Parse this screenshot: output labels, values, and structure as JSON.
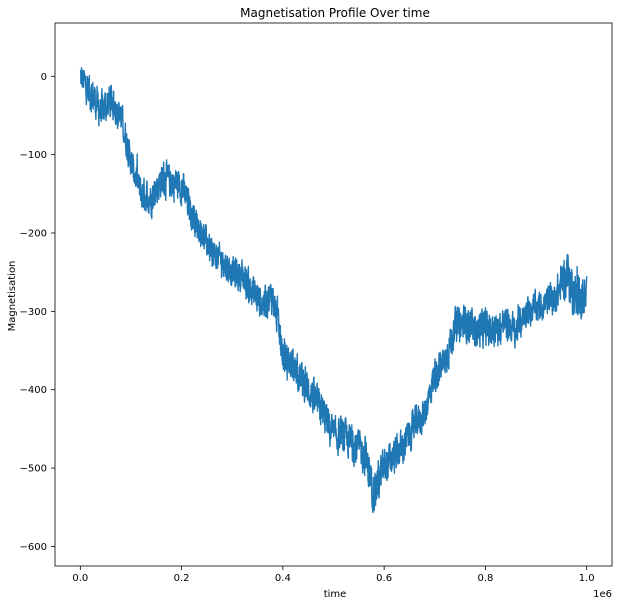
{
  "chart_data": {
    "type": "line",
    "title": "Magnetisation Profile Over time",
    "xlabel": "time",
    "ylabel": "Magnetisation",
    "x_offset_label": "1e6",
    "x_multiplier": 1000000,
    "xlim": [
      -0.05,
      1.05
    ],
    "ylim": [
      -625,
      68
    ],
    "x_ticks": [
      0.0,
      0.2,
      0.4,
      0.6,
      0.8,
      1.0
    ],
    "x_tick_labels": [
      "0.0",
      "0.2",
      "0.4",
      "0.6",
      "0.8",
      "1.0"
    ],
    "y_ticks": [
      0,
      -100,
      -200,
      -300,
      -400,
      -500,
      -600
    ],
    "y_tick_labels": [
      "0",
      "−100",
      "−200",
      "−300",
      "−400",
      "−500",
      "−600"
    ],
    "grid": false,
    "legend": "none",
    "line_color": "#1f77b4",
    "series": [
      {
        "x": [
          0.0,
          0.02,
          0.04,
          0.06,
          0.08,
          0.1,
          0.12,
          0.14,
          0.16,
          0.18,
          0.2,
          0.22,
          0.24,
          0.26,
          0.28,
          0.3,
          0.32,
          0.34,
          0.36,
          0.38,
          0.4,
          0.42,
          0.44,
          0.46,
          0.48,
          0.5,
          0.52,
          0.54,
          0.56,
          0.58,
          0.6,
          0.62,
          0.64,
          0.66,
          0.68,
          0.7,
          0.72,
          0.74,
          0.76,
          0.78,
          0.8,
          0.82,
          0.84,
          0.86,
          0.88,
          0.9,
          0.92,
          0.94,
          0.96,
          0.98,
          1.0
        ],
        "y": [
          0,
          -20,
          -45,
          -30,
          -50,
          -110,
          -150,
          -155,
          -130,
          -135,
          -140,
          -175,
          -200,
          -225,
          -235,
          -250,
          -255,
          -275,
          -290,
          -280,
          -355,
          -370,
          -390,
          -410,
          -430,
          -460,
          -460,
          -470,
          -480,
          -530,
          -500,
          -485,
          -470,
          -445,
          -430,
          -380,
          -365,
          -320,
          -315,
          -325,
          -320,
          -325,
          -315,
          -325,
          -300,
          -295,
          -290,
          -280,
          -250,
          -285,
          -285
        ],
        "band_halfwidth": [
          25,
          32,
          30,
          32,
          28,
          25,
          28,
          30,
          32,
          30,
          30,
          26,
          25,
          25,
          25,
          26,
          30,
          30,
          30,
          28,
          30,
          28,
          30,
          30,
          32,
          32,
          30,
          32,
          35,
          35,
          35,
          30,
          30,
          28,
          28,
          30,
          30,
          30,
          30,
          30,
          32,
          30,
          28,
          28,
          26,
          26,
          28,
          28,
          40,
          38,
          35
        ]
      }
    ]
  }
}
